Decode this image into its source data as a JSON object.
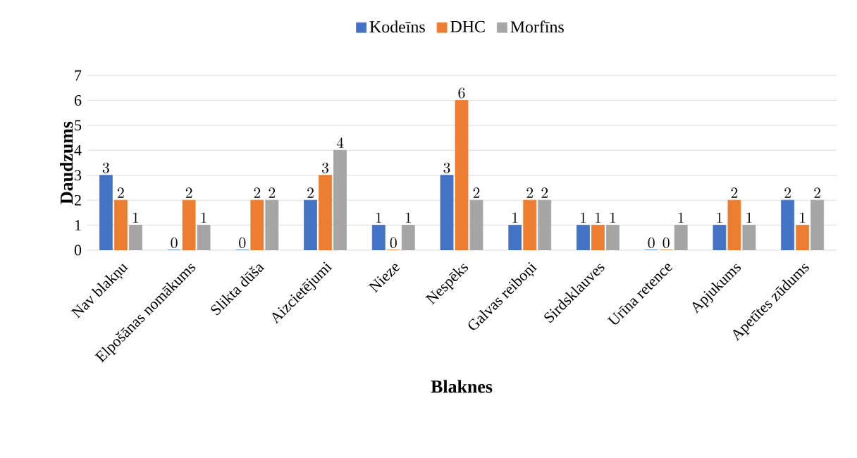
{
  "chart_data": {
    "type": "bar",
    "xlabel": "Blaknes",
    "ylabel": "Daudzums",
    "categories": [
      "Nav blakņu",
      "Elpošānas nomākums",
      "Slikta dūša",
      "Aizcietējumi",
      "Nieze",
      "Nespēks",
      "Galvas reiboņi",
      "Sirdsklauves",
      "Urīna retence",
      "Apjukums",
      "Apetītes zūdums"
    ],
    "series": [
      {
        "name": "Kodeīns",
        "color": "#4472c4",
        "values": [
          3,
          0,
          0,
          2,
          1,
          3,
          1,
          1,
          0,
          1,
          2
        ]
      },
      {
        "name": "DHC",
        "color": "#ed7d31",
        "values": [
          2,
          2,
          2,
          3,
          0,
          6,
          2,
          1,
          0,
          2,
          1
        ]
      },
      {
        "name": "Morfīns",
        "color": "#a5a5a5",
        "values": [
          1,
          1,
          2,
          4,
          1,
          2,
          2,
          1,
          1,
          1,
          2
        ]
      }
    ],
    "ylim": [
      0,
      7
    ],
    "yticks": [
      0,
      1,
      2,
      3,
      4,
      5,
      6,
      7
    ],
    "grid": "y",
    "legend": "top",
    "data_labels": true
  }
}
